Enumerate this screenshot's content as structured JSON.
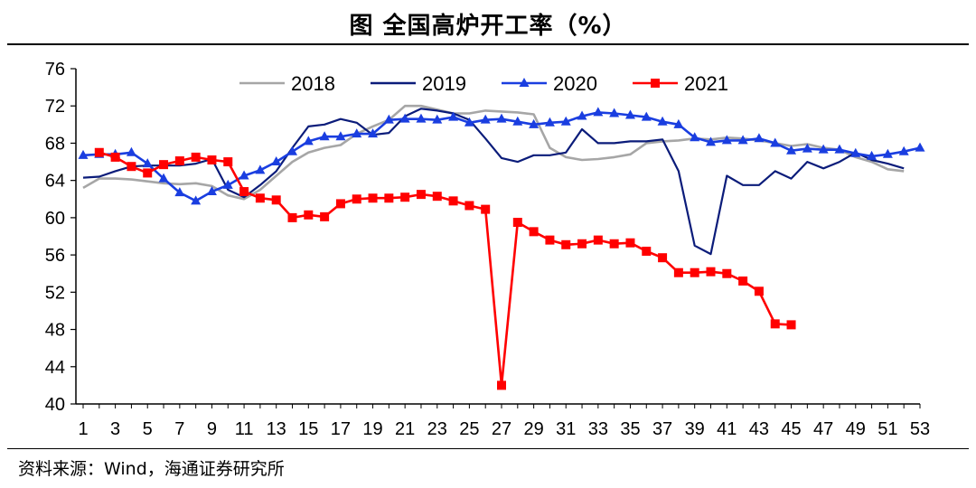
{
  "title": "图  全国高炉开工率（%）",
  "source": "资料来源：Wind，海通证券研究所",
  "chart_data": {
    "type": "line",
    "title": "图  全国高炉开工率（%）",
    "xlabel": "",
    "ylabel": "",
    "xlim": [
      1,
      53
    ],
    "ylim": [
      40,
      76
    ],
    "yticks": [
      40,
      44,
      48,
      52,
      56,
      60,
      64,
      68,
      72,
      76
    ],
    "xticks": [
      1,
      3,
      5,
      7,
      9,
      11,
      13,
      15,
      17,
      19,
      21,
      23,
      25,
      27,
      29,
      31,
      33,
      35,
      37,
      39,
      41,
      43,
      45,
      47,
      49,
      51,
      53
    ],
    "legend_position": "top-center",
    "grid": false,
    "series": [
      {
        "name": "2018",
        "color": "#a6a6a6",
        "marker": "none",
        "x": [
          1,
          2,
          3,
          4,
          5,
          6,
          7,
          8,
          9,
          10,
          11,
          12,
          13,
          14,
          15,
          16,
          17,
          18,
          19,
          20,
          21,
          22,
          23,
          24,
          25,
          26,
          27,
          28,
          29,
          30,
          31,
          32,
          33,
          34,
          35,
          36,
          37,
          38,
          39,
          40,
          41,
          42,
          43,
          44,
          45,
          46,
          47,
          48,
          49,
          50,
          51,
          52
        ],
        "y": [
          63.2,
          64.2,
          64.2,
          64.1,
          63.9,
          63.7,
          63.6,
          63.7,
          63.4,
          62.4,
          62.0,
          63.0,
          64.5,
          66.0,
          67.0,
          67.5,
          67.8,
          69.0,
          69.8,
          70.5,
          72.0,
          72.0,
          71.6,
          71.2,
          71.2,
          71.5,
          71.4,
          71.3,
          71.1,
          67.5,
          66.5,
          66.2,
          66.3,
          66.5,
          66.8,
          68.0,
          68.2,
          68.3,
          68.5,
          68.4,
          68.6,
          68.5,
          68.3,
          68.0,
          67.7,
          67.9,
          67.5,
          67.3,
          66.5,
          66.0,
          65.2,
          65.0
        ]
      },
      {
        "name": "2019",
        "color": "#0b1c7a",
        "marker": "none",
        "x": [
          1,
          2,
          3,
          4,
          5,
          6,
          7,
          8,
          9,
          10,
          11,
          12,
          13,
          14,
          15,
          16,
          17,
          18,
          19,
          20,
          21,
          22,
          23,
          24,
          25,
          26,
          27,
          28,
          29,
          30,
          31,
          32,
          33,
          34,
          35,
          36,
          37,
          38,
          39,
          40,
          41,
          42,
          43,
          44,
          45,
          46,
          47,
          48,
          49,
          50,
          51,
          52
        ],
        "y": [
          64.3,
          64.4,
          65.0,
          65.5,
          65.6,
          65.6,
          65.6,
          65.8,
          66.3,
          63.0,
          62.2,
          63.5,
          65.0,
          67.5,
          69.8,
          70.0,
          70.6,
          70.2,
          68.9,
          69.1,
          70.9,
          71.7,
          71.5,
          71.2,
          70.5,
          68.5,
          66.4,
          66.0,
          66.7,
          66.7,
          67.0,
          69.5,
          68.0,
          68.0,
          68.2,
          68.2,
          68.4,
          65.0,
          57.0,
          56.1,
          64.5,
          63.5,
          63.5,
          65.0,
          64.2,
          66.0,
          65.3,
          66.0,
          67.0,
          66.2,
          65.8,
          65.3
        ]
      },
      {
        "name": "2020",
        "color": "#1a3ee0",
        "marker": "triangle",
        "x": [
          1,
          2,
          3,
          4,
          5,
          6,
          7,
          8,
          9,
          10,
          11,
          12,
          13,
          14,
          15,
          16,
          17,
          18,
          19,
          20,
          21,
          22,
          23,
          24,
          25,
          26,
          27,
          28,
          29,
          30,
          31,
          32,
          33,
          34,
          35,
          36,
          37,
          38,
          39,
          40,
          41,
          42,
          43,
          44,
          45,
          46,
          47,
          48,
          49,
          50,
          51,
          52,
          53
        ],
        "y": [
          66.7,
          66.8,
          66.8,
          67.0,
          65.8,
          64.2,
          62.7,
          61.8,
          62.8,
          63.5,
          64.5,
          65.1,
          66.0,
          67.1,
          68.2,
          68.7,
          68.7,
          69.0,
          69.0,
          70.5,
          70.6,
          70.6,
          70.5,
          70.8,
          70.2,
          70.5,
          70.6,
          70.3,
          70.0,
          70.2,
          70.3,
          70.9,
          71.3,
          71.2,
          71.0,
          70.8,
          70.3,
          70.0,
          68.6,
          68.1,
          68.3,
          68.3,
          68.5,
          68.0,
          67.2,
          67.4,
          67.3,
          67.3,
          66.9,
          66.6,
          66.8,
          67.1,
          67.5
        ]
      },
      {
        "name": "2021",
        "color": "#ff0000",
        "marker": "square",
        "x": [
          2,
          3,
          4,
          5,
          6,
          7,
          8,
          9,
          10,
          11,
          12,
          13,
          14,
          15,
          16,
          17,
          18,
          19,
          20,
          21,
          22,
          23,
          24,
          25,
          26,
          27,
          28,
          29,
          30,
          31,
          32,
          33,
          34,
          35,
          36,
          37,
          38,
          39,
          40,
          41,
          42,
          43,
          44,
          45
        ],
        "y": [
          67.0,
          66.5,
          65.5,
          64.8,
          65.7,
          66.1,
          66.5,
          66.2,
          66.0,
          62.8,
          62.1,
          61.9,
          60.0,
          60.3,
          60.1,
          61.5,
          62.0,
          62.1,
          62.1,
          62.2,
          62.5,
          62.3,
          61.8,
          61.3,
          60.9,
          42.0,
          59.5,
          58.5,
          57.6,
          57.1,
          57.2,
          57.6,
          57.2,
          57.3,
          56.4,
          55.7,
          54.1,
          54.1,
          54.2,
          54.0,
          53.2,
          52.1,
          48.6,
          48.5
        ]
      }
    ]
  }
}
